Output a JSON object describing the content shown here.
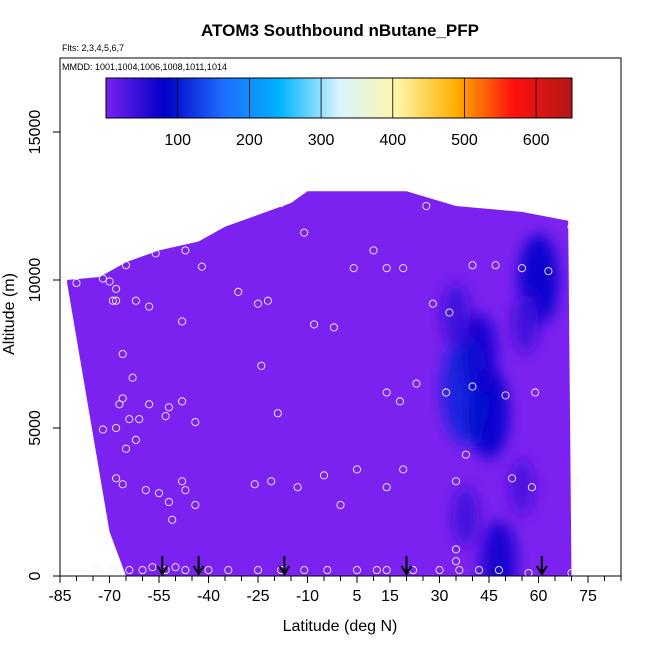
{
  "chart_data": {
    "type": "heatmap",
    "title": "ATOM3 Southbound nButane_PFP",
    "subtitle_lines": [
      "Flts: 2,3,4,5,6,7",
      "MMDD: 1001,1004,1006,1008,1011,1014"
    ],
    "xlabel": "Latitude (deg N)",
    "ylabel": "Altitude (m)",
    "xlim": [
      -85,
      85
    ],
    "ylim": [
      0,
      17500
    ],
    "x_ticks": [
      -85,
      -70,
      -55,
      -40,
      -25,
      -10,
      5,
      15,
      30,
      45,
      60,
      75
    ],
    "x_minor_ticks": [
      -80,
      -75,
      -65,
      -60,
      -50,
      -45,
      -35,
      -30,
      -20,
      -15,
      -5,
      0,
      10,
      20,
      25,
      35,
      40,
      50,
      55,
      65,
      70,
      80,
      85
    ],
    "y_ticks": [
      0,
      5000,
      10000,
      15000
    ],
    "grid": false,
    "colorbar": {
      "range": [
        0,
        650
      ],
      "ticks": [
        100,
        200,
        300,
        400,
        500,
        600
      ],
      "colors": [
        "#7b22f0",
        "#0000c8",
        "#1e6cff",
        "#00b4ff",
        "#d8f4ff",
        "#fff6a8",
        "#ffb000",
        "#ff1010",
        "#b01818"
      ]
    },
    "background_color": "#7b22f0",
    "coverage_polygon": [
      [
        -73,
        10100
      ],
      [
        -65,
        10600
      ],
      [
        -55,
        11000
      ],
      [
        -43,
        11300
      ],
      [
        -35,
        11800
      ],
      [
        -25,
        12200
      ],
      [
        -15,
        12600
      ],
      [
        -10,
        13000
      ],
      [
        20,
        13000
      ],
      [
        35,
        12500
      ],
      [
        55,
        12300
      ],
      [
        69,
        12000
      ],
      [
        70,
        0
      ],
      [
        -65,
        0
      ],
      [
        -70,
        1500
      ],
      [
        -83,
        10000
      ]
    ],
    "high_regions": [
      {
        "lat": 38,
        "alt": 6300,
        "value": 110
      },
      {
        "lat": 45,
        "alt": 5500,
        "value": 85
      },
      {
        "lat": 42,
        "alt": 7500,
        "value": 70
      },
      {
        "lat": 35,
        "alt": 8800,
        "value": 45
      },
      {
        "lat": 60,
        "alt": 10000,
        "value": 85
      },
      {
        "lat": 56,
        "alt": 8500,
        "value": 40
      },
      {
        "lat": 48,
        "alt": 500,
        "value": 70
      },
      {
        "lat": 38,
        "alt": 2000,
        "value": 40
      },
      {
        "lat": 55,
        "alt": 3000,
        "value": 35
      }
    ],
    "samples": [
      {
        "lat": -84,
        "alt": 10000
      },
      {
        "lat": -80,
        "alt": 9900
      },
      {
        "lat": -72,
        "alt": 10050
      },
      {
        "lat": -70,
        "alt": 9950
      },
      {
        "lat": -68,
        "alt": 9700
      },
      {
        "lat": -69,
        "alt": 9300
      },
      {
        "lat": -68,
        "alt": 9300
      },
      {
        "lat": -65,
        "alt": 10500
      },
      {
        "lat": -62,
        "alt": 9300
      },
      {
        "lat": -58,
        "alt": 9100
      },
      {
        "lat": -56,
        "alt": 10900
      },
      {
        "lat": -47,
        "alt": 11000
      },
      {
        "lat": -42,
        "alt": 10450
      },
      {
        "lat": -48,
        "alt": 8600
      },
      {
        "lat": -31,
        "alt": 9600
      },
      {
        "lat": -25,
        "alt": 9200
      },
      {
        "lat": -22,
        "alt": 9300
      },
      {
        "lat": -18,
        "alt": 12600
      },
      {
        "lat": -11,
        "alt": 11600
      },
      {
        "lat": -8,
        "alt": 8500
      },
      {
        "lat": -2,
        "alt": 8400
      },
      {
        "lat": 4,
        "alt": 10400
      },
      {
        "lat": 10,
        "alt": 11000
      },
      {
        "lat": 14,
        "alt": 10400
      },
      {
        "lat": 19,
        "alt": 10400
      },
      {
        "lat": 26,
        "alt": 12500
      },
      {
        "lat": 28,
        "alt": 9200
      },
      {
        "lat": 33,
        "alt": 8900
      },
      {
        "lat": 40,
        "alt": 10500
      },
      {
        "lat": 47,
        "alt": 10500
      },
      {
        "lat": 55,
        "alt": 10400
      },
      {
        "lat": 63,
        "alt": 10300
      },
      {
        "lat": 70,
        "alt": 11800
      },
      {
        "lat": -66,
        "alt": 7500
      },
      {
        "lat": -63,
        "alt": 6700
      },
      {
        "lat": -66,
        "alt": 6000
      },
      {
        "lat": -67,
        "alt": 5800
      },
      {
        "lat": -58,
        "alt": 5800
      },
      {
        "lat": -52,
        "alt": 5700
      },
      {
        "lat": -48,
        "alt": 5900
      },
      {
        "lat": -44,
        "alt": 5200
      },
      {
        "lat": -24,
        "alt": 7100
      },
      {
        "lat": -19,
        "alt": 5500
      },
      {
        "lat": -72,
        "alt": 4950
      },
      {
        "lat": -68,
        "alt": 5000
      },
      {
        "lat": -64,
        "alt": 5300
      },
      {
        "lat": -61,
        "alt": 5300
      },
      {
        "lat": -53,
        "alt": 5400
      },
      {
        "lat": -62,
        "alt": 4600
      },
      {
        "lat": -65,
        "alt": 4300
      },
      {
        "lat": 14,
        "alt": 6200
      },
      {
        "lat": 18,
        "alt": 5900
      },
      {
        "lat": 23,
        "alt": 6500
      },
      {
        "lat": 32,
        "alt": 6200
      },
      {
        "lat": 40,
        "alt": 6400
      },
      {
        "lat": 50,
        "alt": 6100
      },
      {
        "lat": 59,
        "alt": 6200
      },
      {
        "lat": 38,
        "alt": 4100
      },
      {
        "lat": 5,
        "alt": 3600
      },
      {
        "lat": 19,
        "alt": 3600
      },
      {
        "lat": -68,
        "alt": 3300
      },
      {
        "lat": -66,
        "alt": 3100
      },
      {
        "lat": -48,
        "alt": 3200
      },
      {
        "lat": -47,
        "alt": 2900
      },
      {
        "lat": -59,
        "alt": 2900
      },
      {
        "lat": -55,
        "alt": 2800
      },
      {
        "lat": -26,
        "alt": 3100
      },
      {
        "lat": -21,
        "alt": 3200
      },
      {
        "lat": -13,
        "alt": 3000
      },
      {
        "lat": -5,
        "alt": 3400
      },
      {
        "lat": 0,
        "alt": 2400
      },
      {
        "lat": 14,
        "alt": 3000
      },
      {
        "lat": 35,
        "alt": 3200
      },
      {
        "lat": 52,
        "alt": 3300
      },
      {
        "lat": 58,
        "alt": 3000
      },
      {
        "lat": 71,
        "alt": 3200
      },
      {
        "lat": -44,
        "alt": 2400
      },
      {
        "lat": -52,
        "alt": 2500
      },
      {
        "lat": -51,
        "alt": 1900
      },
      {
        "lat": 35,
        "alt": 900
      },
      {
        "lat": 35,
        "alt": 500
      },
      {
        "lat": -74,
        "alt": 200
      },
      {
        "lat": -69,
        "alt": 200
      },
      {
        "lat": -67,
        "alt": 200
      },
      {
        "lat": -64,
        "alt": 200
      },
      {
        "lat": -60,
        "alt": 200
      },
      {
        "lat": -57,
        "alt": 300
      },
      {
        "lat": -53,
        "alt": 200
      },
      {
        "lat": -50,
        "alt": 300
      },
      {
        "lat": -47,
        "alt": 200
      },
      {
        "lat": -40,
        "alt": 200
      },
      {
        "lat": -34,
        "alt": 200
      },
      {
        "lat": -25,
        "alt": 200
      },
      {
        "lat": -18,
        "alt": 200
      },
      {
        "lat": -11,
        "alt": 200
      },
      {
        "lat": -4,
        "alt": 200
      },
      {
        "lat": 5,
        "alt": 200
      },
      {
        "lat": 11,
        "alt": 200
      },
      {
        "lat": 14,
        "alt": 200
      },
      {
        "lat": 22,
        "alt": 200
      },
      {
        "lat": 30,
        "alt": 200
      },
      {
        "lat": 36,
        "alt": 200
      },
      {
        "lat": 42,
        "alt": 200
      },
      {
        "lat": 48,
        "alt": 200
      },
      {
        "lat": 57,
        "alt": 100
      },
      {
        "lat": 70,
        "alt": 100
      }
    ],
    "arrow_latitudes": [
      -54,
      -43,
      -17,
      20,
      61
    ]
  }
}
